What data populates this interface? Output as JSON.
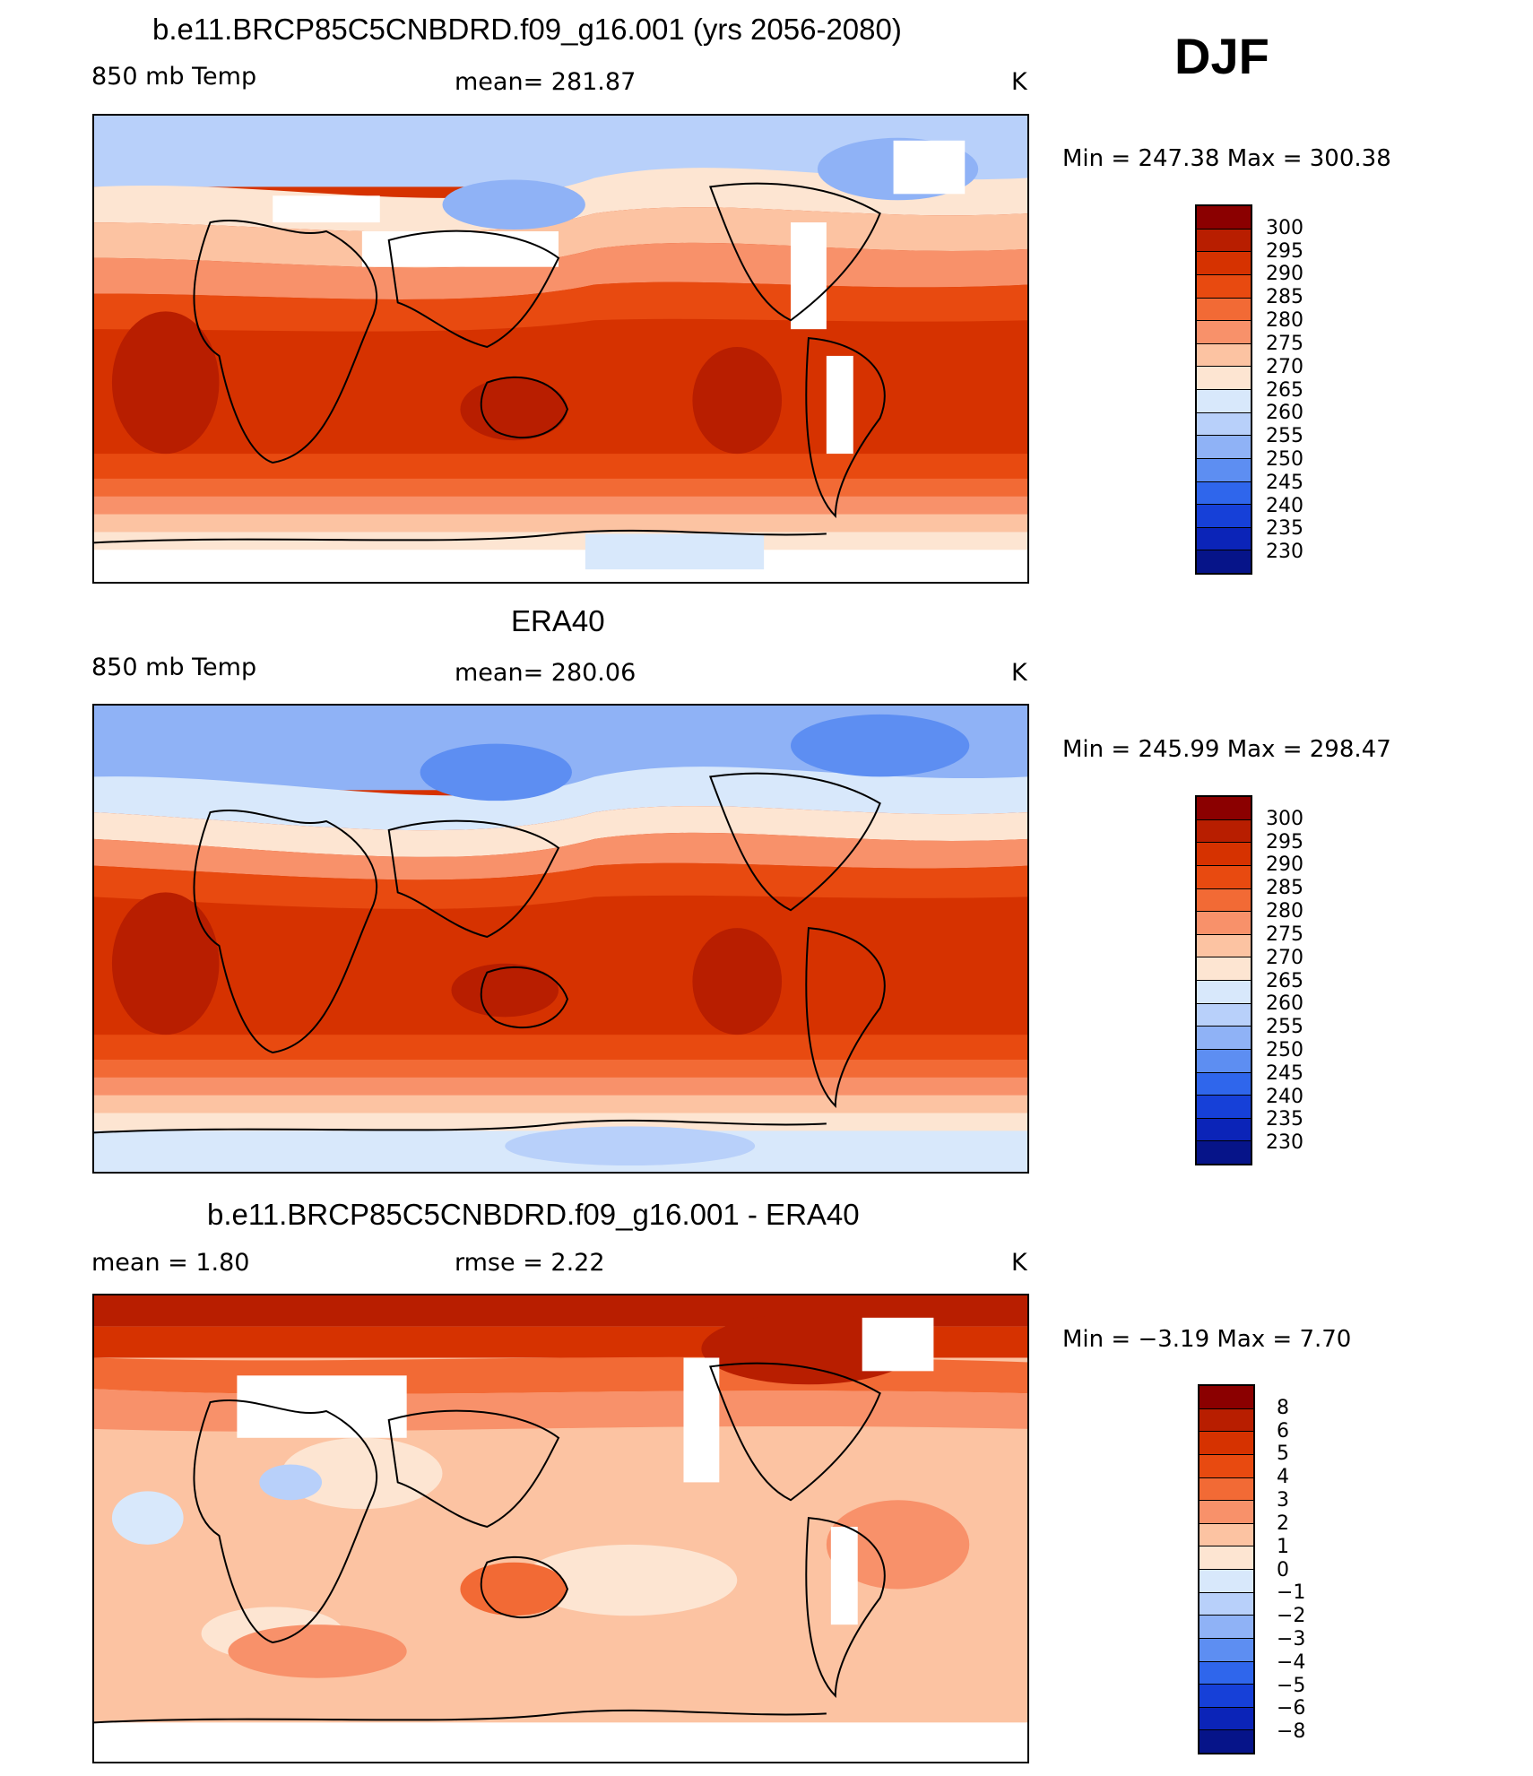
{
  "season": "DJF",
  "panels": [
    {
      "title": "b.e11.BRCP85C5CNBDRD.f09_g16.001 (yrs 2056-2080)",
      "left_label": "850 mb Temp",
      "center_label": "mean=  281.87",
      "right_label": "K",
      "minmax": "Min  =  247.38  Max  =  300.38"
    },
    {
      "title": "ERA40",
      "left_label": "850 mb Temp",
      "center_label": "mean=  280.06",
      "right_label": "K",
      "minmax": "Min  =  245.99  Max  =  298.47"
    },
    {
      "title": "b.e11.BRCP85C5CNBDRD.f09_g16.001 - ERA40",
      "left_label": "mean  =     1.80",
      "center_label": "rmse  =     2.22",
      "right_label": "K",
      "minmax": "Min  =    −3.19  Max  =     7.70"
    }
  ],
  "temp_colorbar": {
    "labels": [
      "300",
      "295",
      "290",
      "285",
      "280",
      "275",
      "270",
      "265",
      "260",
      "255",
      "250",
      "245",
      "240",
      "235",
      "230"
    ],
    "colors": [
      "#8b0000",
      "#b81e00",
      "#d63200",
      "#e84a10",
      "#f26a35",
      "#f8916a",
      "#fcc3a2",
      "#fde5d2",
      "#d8e8fb",
      "#b8d0fa",
      "#8fb2f6",
      "#5d8ef2",
      "#2f66ec",
      "#1640d8",
      "#0b24b8",
      "#061489"
    ]
  },
  "diff_colorbar": {
    "labels": [
      "8",
      "6",
      "5",
      "4",
      "3",
      "2",
      "1",
      "0",
      "−1",
      "−2",
      "−3",
      "−4",
      "−5",
      "−6",
      "−8"
    ],
    "colors": [
      "#8b0000",
      "#b81e00",
      "#d63200",
      "#e84a10",
      "#f26a35",
      "#f8916a",
      "#fcc3a2",
      "#fde5d2",
      "#d8e8fb",
      "#b8d0fa",
      "#8fb2f6",
      "#5d8ef2",
      "#2f66ec",
      "#1640d8",
      "#0b24b8",
      "#061489"
    ]
  }
}
